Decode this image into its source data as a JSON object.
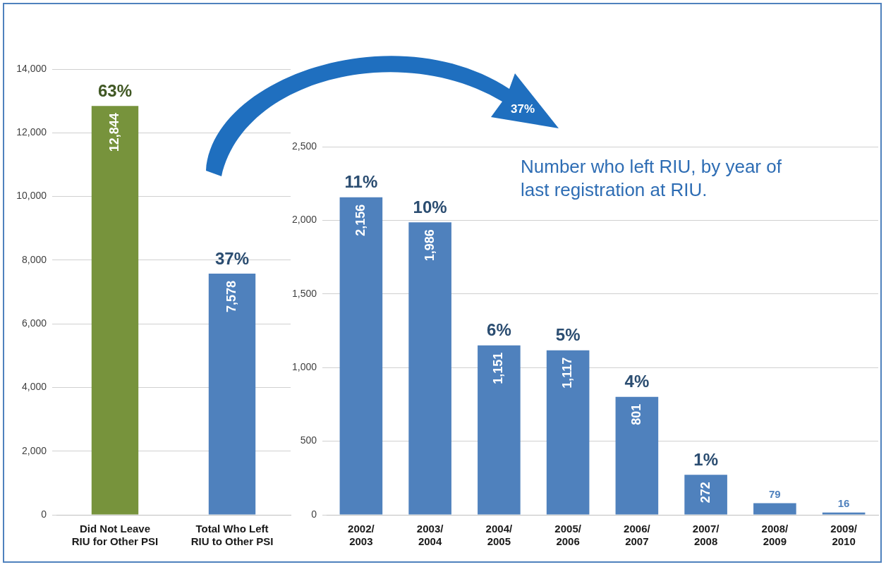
{
  "chart_data": [
    {
      "type": "bar",
      "categories": [
        "Did Not Leave RIU for Other PSI",
        "Total Who Left RIU to Other PSI"
      ],
      "colors": [
        "#77933c",
        "#4f81bd"
      ],
      "values": [
        12844,
        7578
      ],
      "ylim": [
        0,
        14000
      ],
      "yticks": [
        {
          "value": 0,
          "label": "0"
        },
        {
          "value": 2000,
          "label": "2,000"
        },
        {
          "value": 4000,
          "label": "4,000"
        },
        {
          "value": 6000,
          "label": "6,000"
        },
        {
          "value": 8000,
          "label": "8,000"
        },
        {
          "value": 10000,
          "label": "10,000"
        },
        {
          "value": 12000,
          "label": "12,000"
        },
        {
          "value": 14000,
          "label": "14,000"
        }
      ],
      "grid": "y",
      "value_labels": [
        "12,844",
        "7,578"
      ],
      "annotations": [
        {
          "text": "63%",
          "x": "Did Not Leave RIU for Other PSI",
          "y": 12844
        },
        {
          "text": "37%",
          "x": "Total Who Left RIU to Other PSI",
          "y": 7578
        }
      ]
    },
    {
      "type": "bar",
      "title": "Number who left RIU, by year of last registration at RIU.",
      "categories": [
        "2002/ 2003",
        "2003/ 2004",
        "2004/ 2005",
        "2005/ 2006",
        "2006/ 2007",
        "2007/ 2008",
        "2008/ 2009",
        "2009/ 2010"
      ],
      "color": "#4f81bd",
      "values": [
        2156,
        1986,
        1151,
        1117,
        801,
        272,
        79,
        16
      ],
      "ylim": [
        0,
        2500
      ],
      "yticks": [
        {
          "value": 0,
          "label": "0"
        },
        {
          "value": 500,
          "label": "500"
        },
        {
          "value": 1000,
          "label": "1,000"
        },
        {
          "value": 1500,
          "label": "1,500"
        },
        {
          "value": 2000,
          "label": "2,000"
        },
        {
          "value": 2500,
          "label": "2,500"
        }
      ],
      "grid": "y",
      "value_labels": [
        "2,156",
        "1,986",
        "1,151",
        "1,117",
        "801",
        "272",
        "79",
        "16"
      ],
      "annotations": [
        "37%",
        {
          "text": "11%",
          "x": "2002/ 2003",
          "y": 2156
        },
        {
          "text": "10%",
          "x": "2003/ 2004",
          "y": 1986
        },
        {
          "text": "6%",
          "x": "2004/ 2005",
          "y": 1151
        },
        {
          "text": "5%",
          "x": "2005/ 2006",
          "y": 1117
        },
        {
          "text": "4%",
          "x": "2006/ 2007",
          "y": 801
        },
        {
          "text": "1%",
          "x": "2007/ 2008",
          "y": 272
        }
      ]
    }
  ]
}
